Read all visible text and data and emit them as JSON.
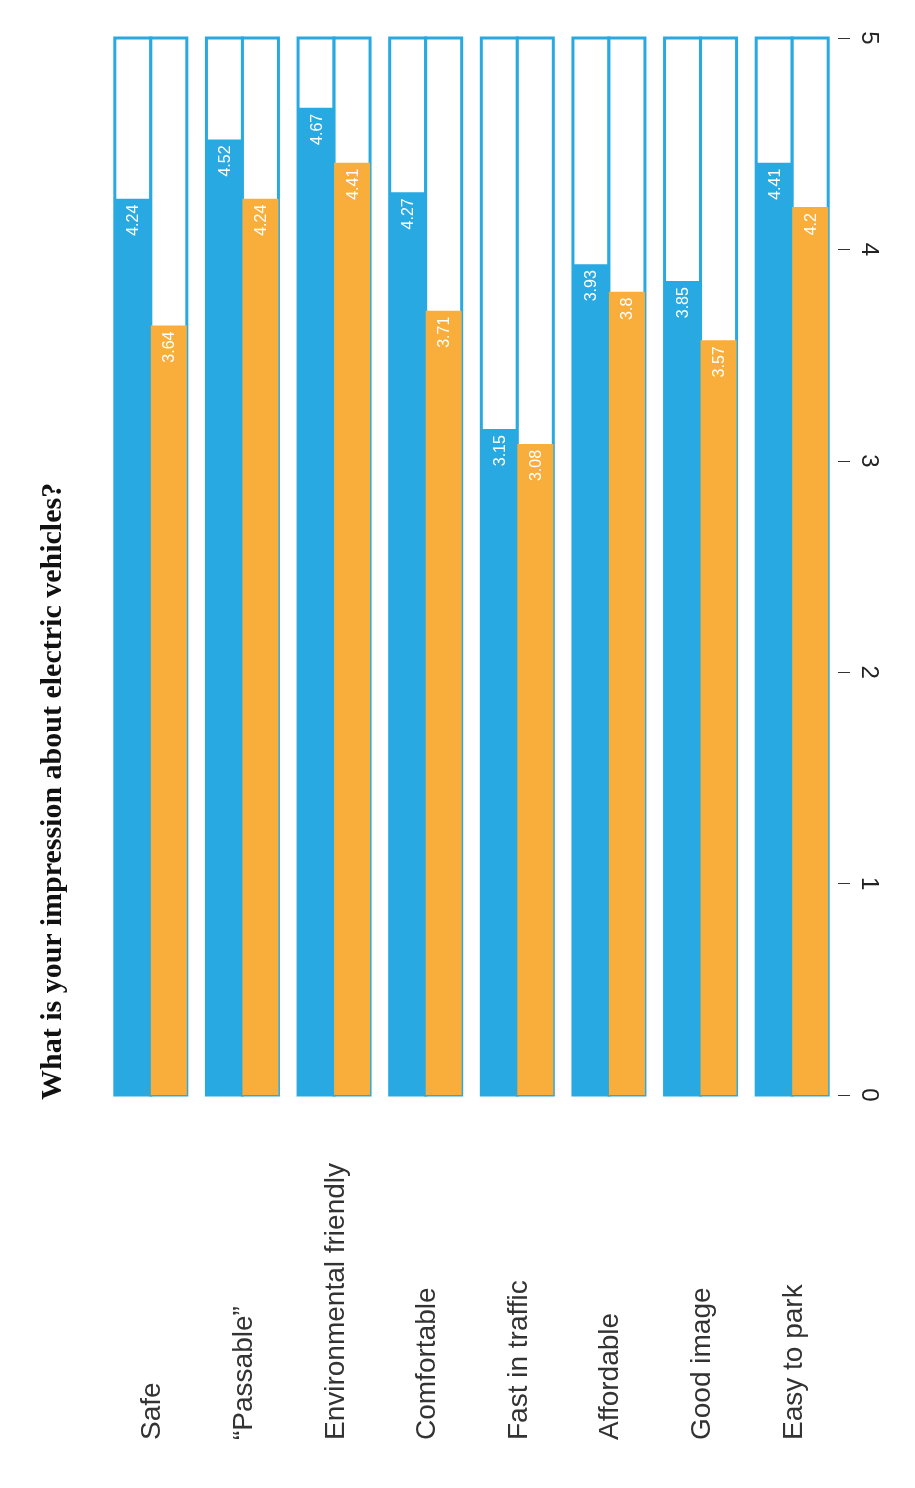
{
  "chart_data": {
    "type": "bar",
    "title": "What is your impression about electric vehicles?",
    "categories": [
      "Safe",
      "“Passable”",
      "Environmental friendly",
      "Comfortable",
      "Fast in traffic",
      "Affordable",
      "Good image",
      "Easy to park"
    ],
    "series": [
      {
        "color": "#29a9e1",
        "values": [
          4.24,
          4.52,
          4.67,
          4.27,
          3.15,
          3.93,
          3.85,
          4.41
        ]
      },
      {
        "color": "#f9ae3b",
        "values": [
          3.64,
          4.24,
          4.41,
          3.71,
          3.08,
          3.8,
          3.57,
          4.2
        ]
      }
    ],
    "ylim": [
      0,
      5
    ],
    "yticks": [
      0,
      1,
      2,
      3,
      4,
      5
    ],
    "data_labels": true
  }
}
